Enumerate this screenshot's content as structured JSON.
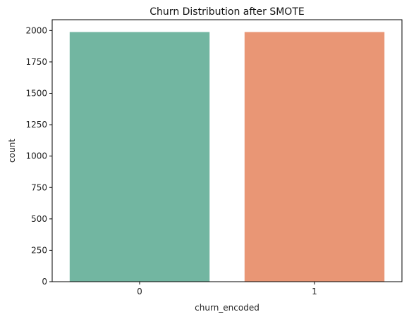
{
  "chart_data": {
    "type": "bar",
    "title": "Churn Distribution after SMOTE",
    "xlabel": "churn_encoded",
    "ylabel": "count",
    "categories": [
      "0",
      "1"
    ],
    "values": [
      1988,
      1988
    ],
    "colors": [
      "#72b6a1",
      "#e99675"
    ],
    "ylim": [
      0,
      2086
    ],
    "yticks": [
      0,
      250,
      500,
      750,
      1000,
      1250,
      1500,
      1750,
      2000
    ],
    "grid": false,
    "legend": "none"
  }
}
